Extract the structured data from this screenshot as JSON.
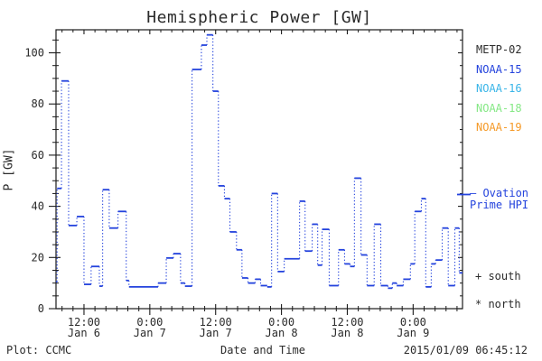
{
  "title": "Hemispheric Power [GW]",
  "legend": {
    "satellites": [
      {
        "label": "METP-02",
        "color": "#2b2b2b"
      },
      {
        "label": "NOAA-15",
        "color": "#2443dd"
      },
      {
        "label": "NOAA-16",
        "color": "#3ab5e8"
      },
      {
        "label": "NOAA-18",
        "color": "#85e885"
      },
      {
        "label": "NOAA-19",
        "color": "#f59a28"
      }
    ],
    "ovation_line1": "— Ovation",
    "ovation_line2": "Prime HPI",
    "ovation_color": "#2443dd",
    "south_label": "+ south",
    "north_label": "* north"
  },
  "footer": {
    "plot_credit": "Plot: CCMC",
    "timestamp": "2015/01/09 06:45:12"
  },
  "chart_data": {
    "type": "line",
    "title": "Hemispheric Power [GW]",
    "xlabel": "Date and Time",
    "ylabel": "P [GW]",
    "ylim": [
      0,
      109
    ],
    "yticks": [
      0,
      20,
      40,
      60,
      80,
      100
    ],
    "y_minor_step": 5,
    "x_unit": "hours since 2015-01-06 00:00 UT",
    "xlim": [
      6.9,
      81.0
    ],
    "xticks": [
      {
        "hour": 12,
        "time": "12:00",
        "date": "Jan 6"
      },
      {
        "hour": 24,
        "time": "0:00",
        "date": "Jan 7"
      },
      {
        "hour": 36,
        "time": "12:00",
        "date": "Jan 7"
      },
      {
        "hour": 48,
        "time": "0:00",
        "date": "Jan 8"
      },
      {
        "hour": 60,
        "time": "12:00",
        "date": "Jan 8"
      },
      {
        "hour": 72,
        "time": "0:00",
        "date": "Jan 9"
      }
    ],
    "x_minor_step": 2,
    "grid": false,
    "legend_position": "right",
    "series": [
      {
        "name": "Ovation Prime HPI",
        "color": "#2443dd",
        "style": "stepped (solid horizontal dashes, dotted vertical connectors)",
        "end_hour": 81.0,
        "steps": [
          [
            6.9,
            10.5
          ],
          [
            7.1,
            47
          ],
          [
            7.9,
            89
          ],
          [
            9.2,
            32.5
          ],
          [
            10.7,
            36
          ],
          [
            12.0,
            9.5
          ],
          [
            13.3,
            16.5
          ],
          [
            14.8,
            8.8
          ],
          [
            15.4,
            46.5
          ],
          [
            16.6,
            31.5
          ],
          [
            18.2,
            38
          ],
          [
            19.7,
            11
          ],
          [
            20.2,
            8.5
          ],
          [
            25.5,
            10
          ],
          [
            27.0,
            19.8
          ],
          [
            28.3,
            21.5
          ],
          [
            29.6,
            10
          ],
          [
            30.4,
            8.8
          ],
          [
            31.7,
            93.5
          ],
          [
            33.4,
            103
          ],
          [
            34.4,
            107
          ],
          [
            35.5,
            85
          ],
          [
            36.5,
            48
          ],
          [
            37.6,
            43
          ],
          [
            38.6,
            30
          ],
          [
            39.8,
            23
          ],
          [
            40.8,
            12
          ],
          [
            41.9,
            10
          ],
          [
            43.2,
            11.5
          ],
          [
            44.2,
            9
          ],
          [
            45.4,
            8.5
          ],
          [
            46.2,
            45
          ],
          [
            47.3,
            14.5
          ],
          [
            48.5,
            19.5
          ],
          [
            51.3,
            42
          ],
          [
            52.3,
            22.5
          ],
          [
            53.6,
            33
          ],
          [
            54.6,
            17
          ],
          [
            55.4,
            31
          ],
          [
            56.7,
            9
          ],
          [
            58.4,
            23
          ],
          [
            59.5,
            17.5
          ],
          [
            60.5,
            16.5
          ],
          [
            61.3,
            51
          ],
          [
            62.5,
            21
          ],
          [
            63.6,
            9
          ],
          [
            64.9,
            33
          ],
          [
            66.1,
            9
          ],
          [
            67.4,
            8
          ],
          [
            68.2,
            10
          ],
          [
            69.0,
            9
          ],
          [
            70.2,
            11.5
          ],
          [
            71.5,
            17.5
          ],
          [
            72.3,
            38
          ],
          [
            73.5,
            43
          ],
          [
            74.3,
            8.5
          ],
          [
            75.3,
            17.5
          ],
          [
            76.1,
            19
          ],
          [
            77.3,
            31.5
          ],
          [
            78.4,
            9
          ],
          [
            79.6,
            31.5
          ],
          [
            80.4,
            14
          ]
        ]
      }
    ]
  }
}
